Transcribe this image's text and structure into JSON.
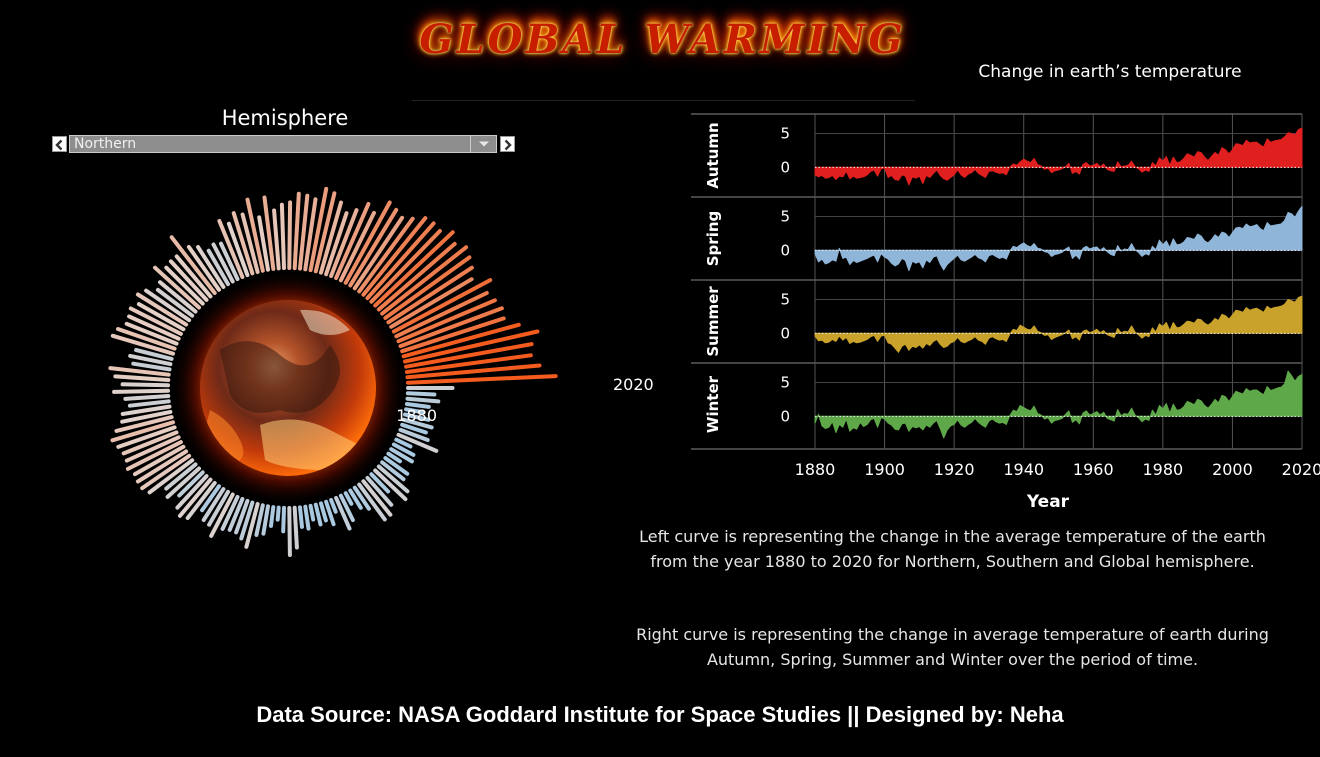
{
  "header": {
    "title": "GLOBAL WARMING",
    "subtitle": "Change in earth’s temperature"
  },
  "filter": {
    "label": "Hemisphere",
    "selected": "Northern"
  },
  "description": {
    "left": "Left  curve  is representing the change in the average temperature of the earth from the year 1880 to 2020 for Northern, Southern and Global hemisphere.",
    "right": "Right curve is representing the change in average  temperature of earth during Autumn, Spring, Summer and Winter over the period of time."
  },
  "footer": {
    "text": "Data Source:  NASA Goddard Institute for Space Studies || Designed by: Neha"
  },
  "chart_data": [
    {
      "type": "radial-bar",
      "start_label": "1880",
      "end_label": "2020",
      "x_range": [
        1880,
        2020
      ],
      "center_image": "burning-earth",
      "color_scale": {
        "cold": "#a9c9e0",
        "neutral": "#e4d3cb",
        "hot": "#f35c1e"
      },
      "values": [
        -0.19,
        -0.38,
        -0.31,
        -0.45,
        -0.52,
        -0.42,
        -0.34,
        -0.5,
        -0.34,
        -0.15,
        -0.55,
        -0.45,
        -0.42,
        -0.58,
        -0.47,
        -0.37,
        -0.2,
        -0.14,
        -0.42,
        -0.23,
        -0.12,
        -0.21,
        -0.4,
        -0.48,
        -0.61,
        -0.37,
        -0.27,
        -0.6,
        -0.52,
        -0.52,
        -0.48,
        -0.58,
        -0.45,
        -0.49,
        -0.17,
        -0.15,
        -0.43,
        -0.61,
        -0.5,
        -0.36,
        -0.32,
        -0.1,
        -0.3,
        -0.27,
        -0.27,
        -0.24,
        -0.06,
        -0.2,
        -0.22,
        -0.43,
        -0.1,
        -0.05,
        -0.12,
        -0.28,
        -0.13,
        -0.2,
        -0.05,
        0.1,
        0.1,
        0.08,
        0.14,
        0.1,
        0.1,
        0.05,
        0.2,
        0.1,
        -0.02,
        -0.05,
        -0.18,
        -0.12,
        -0.04,
        -0.08,
        0.04,
        0.13,
        -0.22,
        -0.15,
        -0.22,
        0.1,
        0.15,
        0.05,
        0.06,
        0.09,
        0.01,
        0.1,
        -0.07,
        -0.12,
        -0.07,
        0.14,
        0.01,
        0.03,
        0.03,
        0.22,
        0.03,
        -0.05,
        -0.19,
        -0.14,
        -0.18,
        0.16,
        -0.03,
        0.2,
        0.14,
        0.35,
        0.04,
        0.34,
        0.12,
        0.11,
        0.24,
        0.38,
        0.36,
        0.32,
        0.51,
        0.47,
        0.26,
        0.22,
        0.32,
        0.48,
        0.39,
        0.65,
        0.6,
        0.45,
        0.63,
        0.76,
        0.78,
        0.76,
        0.89,
        0.79,
        0.8,
        0.84,
        0.78,
        0.68,
        0.93,
        0.79,
        0.86,
        0.82,
        0.89,
        1.09,
        1.35,
        1.22,
        1.18,
        1.3,
        1.45
      ]
    },
    {
      "type": "area",
      "xlabel": "Year",
      "xlim": [
        1880,
        2020
      ],
      "xticks": [
        1880,
        1900,
        1920,
        1940,
        1960,
        1980,
        2000,
        2020
      ],
      "yticks": [
        0,
        5
      ],
      "series": [
        {
          "name": "Autumn",
          "color": "#e01f1f",
          "values": [
            -1.1,
            -1.4,
            -1.2,
            -1.6,
            -1.5,
            -1.2,
            -1.8,
            -1.3,
            -1.4,
            -0.6,
            -1.7,
            -1.3,
            -1.6,
            -1.5,
            -1.4,
            -1.1,
            -0.6,
            -0.4,
            -1.3,
            -0.2,
            -0.1,
            -1.5,
            -1.2,
            -1.8,
            -1.9,
            -1.1,
            -1.3,
            -2.6,
            -1.4,
            -1.6,
            -1.3,
            -2.4,
            -1.2,
            -1.5,
            -0.9,
            -0.4,
            -1.2,
            -1.7,
            -1.9,
            -1.5,
            -1.1,
            -0.4,
            -1.1,
            -1.5,
            -1.0,
            -0.8,
            -0.3,
            -0.9,
            -1.2,
            -1.5,
            -0.6,
            -0.5,
            -0.7,
            -0.9,
            -0.8,
            -1.1,
            0.0,
            0.5,
            0.3,
            0.8,
            1.2,
            0.9,
            0.7,
            1.3,
            0.4,
            0.2,
            -0.3,
            -0.1,
            -0.8,
            -0.5,
            -0.4,
            -0.2,
            0.1,
            0.6,
            -0.9,
            -0.6,
            -1.0,
            0.4,
            0.7,
            0.2,
            0.3,
            0.6,
            0.1,
            0.5,
            -0.3,
            -0.5,
            -0.6,
            0.8,
            0.1,
            0.2,
            0.3,
            0.9,
            0.1,
            -0.2,
            -0.7,
            -0.4,
            -0.6,
            0.7,
            0.2,
            1.4,
            0.9,
            1.6,
            0.3,
            1.5,
            0.7,
            0.8,
            1.3,
            2.0,
            1.8,
            1.5,
            2.3,
            2.2,
            1.5,
            1.0,
            1.6,
            2.2,
            1.8,
            2.9,
            2.6,
            2.0,
            2.6,
            3.5,
            3.4,
            3.2,
            4.0,
            3.6,
            3.7,
            3.7,
            3.3,
            3.0,
            4.2,
            3.7,
            3.9,
            4.0,
            4.1,
            4.5,
            5.1,
            5.0,
            4.8,
            5.6,
            5.8
          ]
        },
        {
          "name": "Spring",
          "color": "#8fb5d8",
          "values": [
            -0.5,
            -1.7,
            -1.3,
            -2.0,
            -1.8,
            -1.4,
            -1.6,
            0.3,
            -1.2,
            -1.0,
            -2.1,
            -1.5,
            -1.8,
            -1.6,
            -1.4,
            -1.2,
            -0.9,
            -0.7,
            -1.7,
            -0.5,
            -1.0,
            -1.3,
            -1.9,
            -2.3,
            -2.0,
            -1.2,
            -1.5,
            -3.0,
            -1.6,
            -1.9,
            -1.7,
            -2.6,
            -1.4,
            -1.8,
            -1.0,
            -0.8,
            -2.0,
            -2.9,
            -2.1,
            -1.6,
            -1.2,
            -0.7,
            -1.4,
            -1.6,
            -1.3,
            -1.0,
            -0.6,
            -1.1,
            -1.3,
            -1.7,
            -0.8,
            -0.6,
            -0.9,
            -1.2,
            -1.0,
            -1.3,
            -0.1,
            0.6,
            0.4,
            0.8,
            1.1,
            0.7,
            0.5,
            1.0,
            0.3,
            0.2,
            -0.2,
            -0.3,
            -0.9,
            -0.6,
            -0.5,
            -0.3,
            0.2,
            0.5,
            -1.2,
            -0.7,
            -1.3,
            0.3,
            0.6,
            0.2,
            0.4,
            0.5,
            0.0,
            0.4,
            -0.2,
            -0.6,
            -0.8,
            0.7,
            -0.1,
            0.2,
            0.1,
            1.0,
            0.1,
            -0.3,
            -0.9,
            -0.5,
            -0.7,
            0.6,
            0.1,
            1.5,
            0.8,
            1.4,
            0.4,
            1.7,
            0.8,
            0.9,
            1.2,
            1.9,
            1.8,
            1.6,
            2.4,
            2.1,
            1.4,
            1.1,
            1.6,
            2.3,
            1.9,
            2.7,
            2.5,
            1.9,
            2.6,
            3.3,
            3.4,
            3.2,
            3.9,
            3.5,
            3.6,
            3.8,
            3.2,
            2.9,
            4.1,
            3.6,
            3.7,
            3.8,
            3.9,
            4.4,
            5.6,
            5.4,
            4.9,
            5.8,
            6.5
          ]
        },
        {
          "name": "Summer",
          "color": "#c9a22b",
          "values": [
            -0.4,
            -1.1,
            -1.0,
            -1.4,
            -1.3,
            -0.9,
            -1.2,
            -0.4,
            -1.0,
            -0.6,
            -1.5,
            -1.2,
            -1.4,
            -1.3,
            -1.1,
            -0.9,
            -0.5,
            -0.3,
            -1.2,
            -0.4,
            -0.3,
            -1.4,
            -1.6,
            -2.2,
            -2.8,
            -1.9,
            -1.6,
            -2.5,
            -1.9,
            -2.1,
            -1.7,
            -2.2,
            -1.5,
            -1.8,
            -1.2,
            -0.9,
            -1.6,
            -2.1,
            -1.9,
            -1.4,
            -1.2,
            -0.6,
            -1.2,
            -1.4,
            -1.1,
            -0.9,
            -0.5,
            -1.0,
            -1.2,
            -1.6,
            -0.7,
            -0.5,
            -0.8,
            -1.0,
            -0.9,
            -1.2,
            -0.1,
            0.6,
            0.4,
            1.2,
            0.9,
            0.6,
            0.5,
            1.1,
            0.3,
            0.1,
            -0.3,
            -0.2,
            -0.9,
            -0.6,
            -0.4,
            -0.2,
            0.1,
            0.5,
            -0.8,
            -0.5,
            -1.0,
            0.3,
            0.5,
            0.1,
            0.3,
            0.6,
            0.1,
            0.4,
            -0.2,
            -0.4,
            -0.6,
            0.7,
            0.1,
            0.3,
            0.2,
            1.1,
            0.2,
            -0.2,
            -0.7,
            -0.3,
            -0.5,
            0.8,
            0.2,
            1.4,
            1.0,
            1.6,
            0.4,
            1.6,
            0.8,
            0.9,
            1.3,
            1.8,
            1.7,
            1.5,
            2.1,
            2.0,
            1.5,
            1.2,
            1.6,
            2.2,
            1.9,
            2.8,
            2.6,
            2.1,
            2.7,
            3.4,
            3.3,
            3.1,
            3.8,
            3.4,
            3.6,
            3.7,
            3.4,
            3.1,
            4.0,
            3.6,
            3.8,
            3.9,
            4.0,
            4.3,
            5.0,
            4.8,
            4.6,
            5.3,
            5.5
          ]
        },
        {
          "name": "Winter",
          "color": "#5fa84a",
          "values": [
            -1.0,
            0.3,
            -1.4,
            -1.8,
            -1.6,
            -0.8,
            -2.4,
            -1.2,
            -1.6,
            -0.4,
            -2.2,
            -1.7,
            -1.9,
            -0.9,
            -1.5,
            -1.2,
            -0.5,
            -0.3,
            -1.6,
            -0.2,
            -0.4,
            -1.0,
            -1.3,
            -1.9,
            -2.0,
            -1.1,
            -1.0,
            -2.2,
            -1.5,
            -1.7,
            -1.5,
            -2.0,
            -1.3,
            -1.6,
            -1.0,
            -0.6,
            -1.8,
            -3.2,
            -2.0,
            -1.4,
            -1.2,
            -0.5,
            -1.3,
            -1.6,
            -1.2,
            -0.9,
            -0.3,
            -0.9,
            -1.3,
            -1.6,
            -0.7,
            -0.4,
            -0.8,
            -1.0,
            -0.9,
            -1.2,
            0.1,
            0.9,
            0.7,
            1.6,
            1.3,
            1.0,
            0.8,
            1.5,
            0.4,
            0.2,
            -0.4,
            -0.2,
            -1.0,
            -0.6,
            -0.5,
            -0.3,
            0.3,
            0.8,
            -0.9,
            -0.5,
            -1.1,
            0.5,
            0.8,
            0.2,
            0.4,
            0.7,
            0.2,
            0.6,
            -0.3,
            -0.5,
            -0.7,
            1.0,
            0.1,
            0.4,
            0.3,
            1.2,
            0.2,
            -0.2,
            -0.8,
            -0.4,
            -0.6,
            0.9,
            0.2,
            1.6,
            1.1,
            1.9,
            0.5,
            1.8,
            0.9,
            1.0,
            1.4,
            2.2,
            2.0,
            1.7,
            2.5,
            2.3,
            1.6,
            1.2,
            1.8,
            2.5,
            2.0,
            3.1,
            2.9,
            2.2,
            2.9,
            3.7,
            3.5,
            3.3,
            4.1,
            3.7,
            3.9,
            3.9,
            3.5,
            3.2,
            4.4,
            3.8,
            4.0,
            4.2,
            4.3,
            4.8,
            6.7,
            6.0,
            5.2,
            5.9,
            6.2
          ]
        }
      ]
    }
  ]
}
